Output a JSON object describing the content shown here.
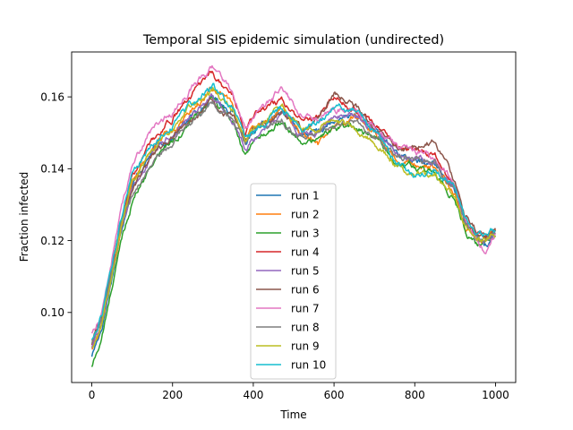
{
  "chart_data": {
    "type": "line",
    "title": "Temporal SIS epidemic simulation (undirected)",
    "xlabel": "Time",
    "ylabel": "Fraction infected",
    "xlim": [
      -50,
      1050
    ],
    "ylim": [
      0.0805,
      0.1725
    ],
    "xticks": [
      0,
      200,
      400,
      600,
      800,
      1000
    ],
    "yticks": [
      0.1,
      0.12,
      0.14,
      0.16
    ],
    "xtick_labels": [
      "0",
      "200",
      "400",
      "600",
      "800",
      "1000"
    ],
    "ytick_labels": [
      "0.10",
      "0.12",
      "0.14",
      "0.16"
    ],
    "grid": false,
    "legend_position": "lower-center",
    "x": [
      0,
      25,
      50,
      75,
      100,
      150,
      200,
      250,
      300,
      350,
      380,
      420,
      470,
      520,
      560,
      600,
      650,
      700,
      750,
      800,
      850,
      900,
      925,
      950,
      975,
      1000
    ],
    "series": [
      {
        "name": "run 1",
        "color": "#1f77b4",
        "values": [
          0.088,
          0.096,
          0.11,
          0.124,
          0.136,
          0.145,
          0.149,
          0.155,
          0.16,
          0.156,
          0.148,
          0.151,
          0.156,
          0.15,
          0.15,
          0.153,
          0.155,
          0.151,
          0.145,
          0.142,
          0.141,
          0.134,
          0.125,
          0.121,
          0.119,
          0.122
        ]
      },
      {
        "name": "run 2",
        "color": "#ff7f0e",
        "values": [
          0.09,
          0.097,
          0.111,
          0.125,
          0.137,
          0.146,
          0.151,
          0.157,
          0.162,
          0.157,
          0.149,
          0.153,
          0.157,
          0.149,
          0.146,
          0.152,
          0.154,
          0.15,
          0.144,
          0.141,
          0.14,
          0.133,
          0.124,
          0.12,
          0.12,
          0.123
        ]
      },
      {
        "name": "run 3",
        "color": "#2ca02c",
        "values": [
          0.085,
          0.093,
          0.107,
          0.121,
          0.131,
          0.142,
          0.148,
          0.154,
          0.159,
          0.153,
          0.143,
          0.149,
          0.154,
          0.147,
          0.148,
          0.151,
          0.152,
          0.148,
          0.142,
          0.14,
          0.138,
          0.131,
          0.123,
          0.119,
          0.119,
          0.121
        ]
      },
      {
        "name": "run 4",
        "color": "#d62728",
        "values": [
          0.091,
          0.098,
          0.112,
          0.126,
          0.138,
          0.148,
          0.154,
          0.161,
          0.166,
          0.16,
          0.15,
          0.157,
          0.159,
          0.153,
          0.155,
          0.161,
          0.157,
          0.152,
          0.146,
          0.146,
          0.144,
          0.135,
          0.126,
          0.122,
          0.121,
          0.123
        ]
      },
      {
        "name": "run 5",
        "color": "#9467bd",
        "values": [
          0.09,
          0.097,
          0.111,
          0.125,
          0.134,
          0.144,
          0.15,
          0.156,
          0.16,
          0.154,
          0.146,
          0.151,
          0.156,
          0.15,
          0.15,
          0.154,
          0.155,
          0.151,
          0.145,
          0.143,
          0.142,
          0.134,
          0.125,
          0.121,
          0.12,
          0.122
        ]
      },
      {
        "name": "run 6",
        "color": "#8c564b",
        "values": [
          0.092,
          0.099,
          0.113,
          0.127,
          0.134,
          0.143,
          0.149,
          0.155,
          0.158,
          0.154,
          0.148,
          0.152,
          0.156,
          0.151,
          0.154,
          0.161,
          0.158,
          0.152,
          0.146,
          0.146,
          0.148,
          0.137,
          0.127,
          0.123,
          0.121,
          0.124
        ]
      },
      {
        "name": "run 7",
        "color": "#e377c2",
        "values": [
          0.094,
          0.1,
          0.115,
          0.13,
          0.141,
          0.151,
          0.156,
          0.163,
          0.168,
          0.161,
          0.151,
          0.157,
          0.162,
          0.155,
          0.153,
          0.157,
          0.156,
          0.152,
          0.146,
          0.145,
          0.143,
          0.135,
          0.125,
          0.121,
          0.117,
          0.122
        ]
      },
      {
        "name": "run 8",
        "color": "#7f7f7f",
        "values": [
          0.091,
          0.098,
          0.112,
          0.126,
          0.132,
          0.142,
          0.147,
          0.153,
          0.157,
          0.153,
          0.147,
          0.151,
          0.154,
          0.149,
          0.15,
          0.153,
          0.153,
          0.149,
          0.144,
          0.143,
          0.142,
          0.134,
          0.125,
          0.121,
          0.12,
          0.122
        ]
      },
      {
        "name": "run 9",
        "color": "#bcbd22",
        "values": [
          0.09,
          0.097,
          0.111,
          0.125,
          0.136,
          0.146,
          0.151,
          0.158,
          0.162,
          0.157,
          0.149,
          0.153,
          0.158,
          0.151,
          0.151,
          0.153,
          0.151,
          0.148,
          0.141,
          0.138,
          0.138,
          0.132,
          0.124,
          0.12,
          0.12,
          0.122
        ]
      },
      {
        "name": "run 10",
        "color": "#17becf",
        "values": [
          0.092,
          0.099,
          0.113,
          0.127,
          0.139,
          0.147,
          0.152,
          0.158,
          0.163,
          0.157,
          0.148,
          0.152,
          0.157,
          0.151,
          0.153,
          0.157,
          0.157,
          0.151,
          0.143,
          0.138,
          0.14,
          0.134,
          0.125,
          0.121,
          0.121,
          0.123
        ]
      }
    ]
  }
}
